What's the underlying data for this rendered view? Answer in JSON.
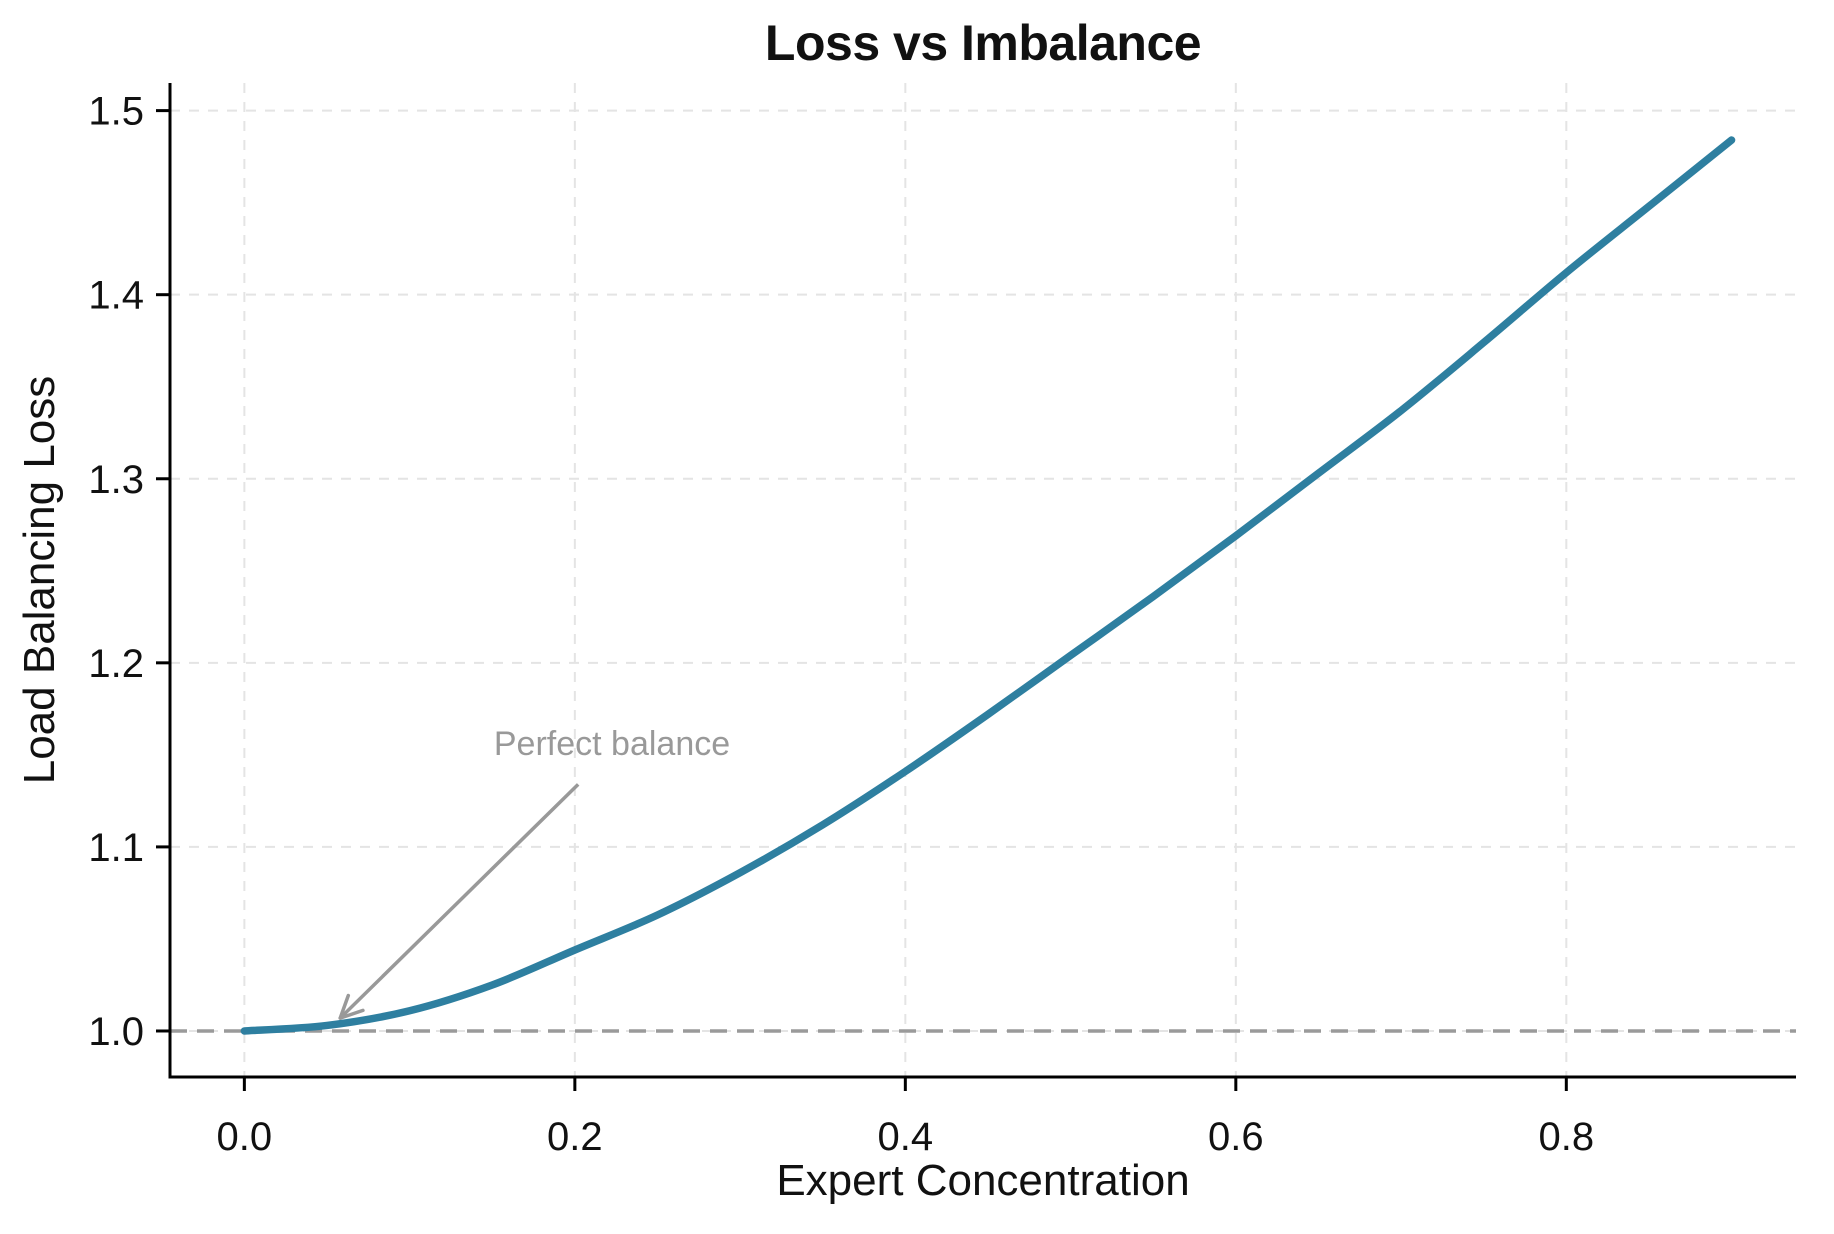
{
  "figure": {
    "background": "#ffffff"
  },
  "chart_data": {
    "type": "line",
    "title": "Loss vs Imbalance",
    "xlabel": "Expert Concentration",
    "ylabel": "Load Balancing Loss",
    "xlim": [
      -0.045,
      0.939
    ],
    "ylim": [
      0.975,
      1.515
    ],
    "grid": true,
    "legend_position": "none",
    "xticks": [
      {
        "value": 0.0,
        "label": "0.0"
      },
      {
        "value": 0.2,
        "label": "0.2"
      },
      {
        "value": 0.4,
        "label": "0.4"
      },
      {
        "value": 0.6,
        "label": "0.6"
      },
      {
        "value": 0.8,
        "label": "0.8"
      }
    ],
    "yticks": [
      {
        "value": 1.0,
        "label": "1.0"
      },
      {
        "value": 1.1,
        "label": "1.1"
      },
      {
        "value": 1.2,
        "label": "1.2"
      },
      {
        "value": 1.3,
        "label": "1.3"
      },
      {
        "value": 1.4,
        "label": "1.4"
      },
      {
        "value": 1.5,
        "label": "1.5"
      }
    ],
    "series": [
      {
        "name": "load-balancing-loss-curve",
        "color": "#2e7fa0",
        "line_width": 7.5,
        "x": [
          0.0,
          0.05,
          0.1,
          0.15,
          0.2,
          0.25,
          0.3,
          0.35,
          0.4,
          0.45,
          0.5,
          0.55,
          0.6,
          0.65,
          0.7,
          0.75,
          0.8,
          0.85,
          0.9
        ],
        "y": [
          1.0,
          1.003,
          1.011,
          1.025,
          1.044,
          1.063,
          1.086,
          1.112,
          1.141,
          1.172,
          1.204,
          1.236,
          1.269,
          1.303,
          1.337,
          1.374,
          1.412,
          1.448,
          1.484
        ]
      }
    ],
    "reference_line": {
      "y": 1.0,
      "style": "dashed",
      "color": "#9a9a9a"
    },
    "annotation": {
      "text": "Perfect balance",
      "color": "#999999",
      "text_xy": [
        0.151,
        1.156
      ],
      "arrow_from_xy": [
        0.202,
        1.134
      ],
      "arrow_to_xy": [
        0.058,
        1.007
      ]
    },
    "colors": {
      "grid": "#e4e4e4",
      "axis": "#000000",
      "tick_label": "#111111",
      "title": "#111111"
    }
  }
}
